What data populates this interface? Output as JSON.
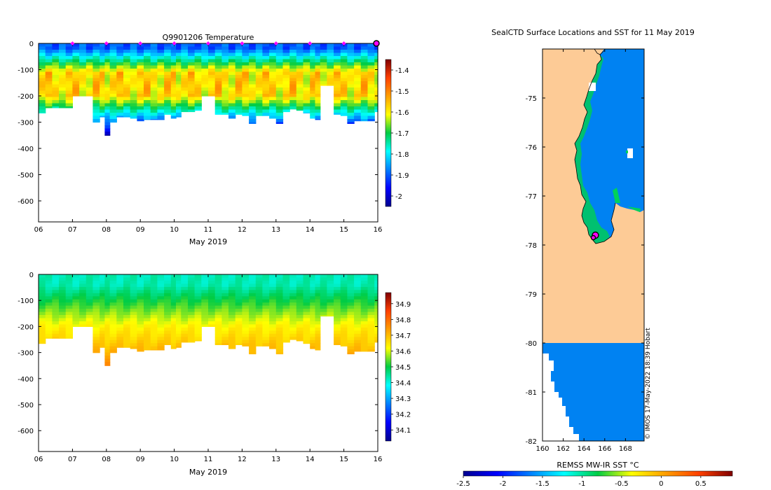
{
  "chart_data": [
    {
      "type": "heatmap",
      "title": "Q9901206  Temperature",
      "xlabel": "May 2019",
      "ylabel": "",
      "x_ticks": [
        "06",
        "07",
        "08",
        "09",
        "10",
        "11",
        "12",
        "13",
        "14",
        "15",
        "16"
      ],
      "y_ticks": [
        0,
        -100,
        -200,
        -300,
        -400,
        -500,
        -600
      ],
      "xlim": [
        6,
        16
      ],
      "ylim": [
        -680,
        0
      ],
      "colorbar": {
        "min": -2.05,
        "max": -1.35,
        "ticks": [
          "-1.4",
          "-1.5",
          "-1.6",
          "-1.7",
          "-1.8",
          "-1.9",
          "-2"
        ],
        "tick_values": [
          -1.4,
          -1.5,
          -1.6,
          -1.7,
          -1.8,
          -1.9,
          -2.0
        ]
      },
      "marker_days": [
        7,
        8,
        9,
        10,
        11,
        12,
        13,
        14,
        15
      ],
      "current_marker_day": 16,
      "profile_days": [
        6.0,
        6.2,
        6.4,
        6.6,
        6.8,
        7.0,
        7.2,
        7.4,
        7.6,
        7.8,
        7.95,
        8.1,
        8.3,
        8.5,
        8.7,
        8.9,
        9.1,
        9.3,
        9.5,
        9.7,
        9.9,
        10.05,
        10.2,
        10.4,
        10.6,
        10.8,
        11.0,
        11.2,
        11.4,
        11.6,
        11.8,
        12.0,
        12.2,
        12.4,
        12.6,
        12.8,
        13.0,
        13.2,
        13.4,
        13.6,
        13.8,
        14.0,
        14.15,
        14.3,
        14.5,
        14.7,
        14.9,
        15.1,
        15.3,
        15.5,
        15.7,
        15.9
      ],
      "profile_max_depth": [
        265,
        245,
        245,
        245,
        245,
        200,
        200,
        200,
        300,
        280,
        350,
        300,
        280,
        280,
        285,
        295,
        290,
        290,
        290,
        270,
        285,
        280,
        260,
        260,
        255,
        200,
        200,
        270,
        270,
        285,
        270,
        275,
        305,
        275,
        275,
        285,
        305,
        260,
        250,
        255,
        265,
        285,
        290,
        160,
        160,
        270,
        275,
        305,
        295,
        295,
        295,
        260
      ]
    },
    {
      "type": "heatmap",
      "title": "",
      "xlabel": "May 2019",
      "ylabel": "",
      "x_ticks": [
        "06",
        "07",
        "08",
        "09",
        "10",
        "11",
        "12",
        "13",
        "14",
        "15",
        "16"
      ],
      "y_ticks": [
        0,
        -100,
        -200,
        -300,
        -400,
        -500,
        -600
      ],
      "xlim": [
        6,
        16
      ],
      "ylim": [
        -680,
        0
      ],
      "colorbar": {
        "min": 34.03,
        "max": 34.97,
        "ticks": [
          "34.9",
          "34.8",
          "34.7",
          "34.6",
          "34.5",
          "34.4",
          "34.3",
          "34.2",
          "34.1"
        ],
        "tick_values": [
          34.9,
          34.8,
          34.7,
          34.6,
          34.5,
          34.4,
          34.3,
          34.2,
          34.1
        ]
      }
    },
    {
      "type": "heatmap",
      "title": "SealCTD Surface Locations and SST for 11 May 2019",
      "xlabel": "REMSS MW-IR SST °C",
      "lon_ticks": [
        "160",
        "162",
        "164",
        "166",
        "168"
      ],
      "lat_ticks": [
        "-75",
        "-76",
        "-77",
        "-78",
        "-79",
        "-80",
        "-81",
        "-82"
      ],
      "lon_range": [
        160,
        169.8
      ],
      "lat_range": [
        -82,
        -74
      ],
      "colorbar": {
        "min": -2.5,
        "max": 0.9,
        "ticks": [
          "-2.5",
          "-2",
          "-1.5",
          "-1",
          "-0.5",
          "0",
          "0.5"
        ],
        "tick_values": [
          -2.5,
          -2.0,
          -1.5,
          -1.0,
          -0.5,
          0.0,
          0.5
        ]
      },
      "seal_locations": [
        [
          165.1,
          -77.8
        ],
        [
          164.9,
          -77.85
        ]
      ],
      "credit": "© IMOS 17-May-2022 18:39 Hobart"
    }
  ]
}
